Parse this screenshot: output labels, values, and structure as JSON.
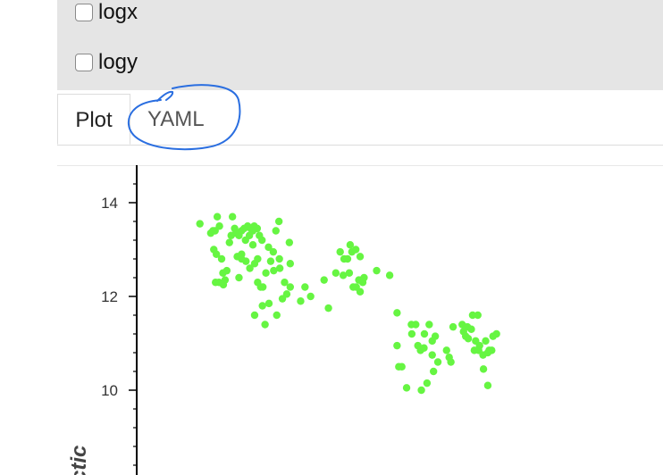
{
  "options": {
    "logx_label": "logx",
    "logy_label": "logy"
  },
  "tabs": [
    {
      "label": "Plot",
      "active": true
    },
    {
      "label": "YAML",
      "active": false
    }
  ],
  "annotation_color": "#2a6ee0",
  "chart_data": {
    "type": "scatter",
    "ylabel": "ctic",
    "yticks": [
      10,
      12,
      14
    ],
    "ylim": [
      8,
      14.8
    ],
    "point_color": "#66f542",
    "x_axis_visible": false,
    "x_domain": [
      0,
      100
    ],
    "points": [
      [
        2,
        13.55
      ],
      [
        4.5,
        13.35
      ],
      [
        5,
        13.4
      ],
      [
        5.5,
        13.4
      ],
      [
        6,
        13.7
      ],
      [
        6.5,
        13.5
      ],
      [
        5.2,
        13.0
      ],
      [
        5.8,
        12.9
      ],
      [
        7,
        12.8
      ],
      [
        6.4,
        12.3
      ],
      [
        5.6,
        12.3
      ],
      [
        7.3,
        12.5
      ],
      [
        8.2,
        12.55
      ],
      [
        7.8,
        12.35
      ],
      [
        7.4,
        12.25
      ],
      [
        8.8,
        13.15
      ],
      [
        9.5,
        13.7
      ],
      [
        10,
        13.45
      ],
      [
        10.3,
        13.35
      ],
      [
        11,
        13.3
      ],
      [
        11.6,
        13.4
      ],
      [
        12.2,
        13.45
      ],
      [
        13,
        13.5
      ],
      [
        13.7,
        13.45
      ],
      [
        14.5,
        13.5
      ],
      [
        14.2,
        13.4
      ],
      [
        15.2,
        13.45
      ],
      [
        15.7,
        13.3
      ],
      [
        9.2,
        13.3
      ],
      [
        10.6,
        12.85
      ],
      [
        11.6,
        12.9
      ],
      [
        12.5,
        13.2
      ],
      [
        13.4,
        13.3
      ],
      [
        14.2,
        13.1
      ],
      [
        15.3,
        12.8
      ],
      [
        16.3,
        13.2
      ],
      [
        17.8,
        13.05
      ],
      [
        18.9,
        12.95
      ],
      [
        19.5,
        13.4
      ],
      [
        20.2,
        13.6
      ],
      [
        22.6,
        13.15
      ],
      [
        11,
        12.4
      ],
      [
        11.6,
        12.8
      ],
      [
        12.6,
        12.75
      ],
      [
        13.5,
        12.6
      ],
      [
        14.6,
        12.7
      ],
      [
        15.3,
        12.3
      ],
      [
        16,
        12.2
      ],
      [
        16.5,
        12.2
      ],
      [
        17.2,
        12.5
      ],
      [
        18.3,
        12.75
      ],
      [
        19,
        12.55
      ],
      [
        20.4,
        12.6
      ],
      [
        20.3,
        12.8
      ],
      [
        21.5,
        12.3
      ],
      [
        22.8,
        12.2
      ],
      [
        22.8,
        12.7
      ],
      [
        14.6,
        11.6
      ],
      [
        16.4,
        11.8
      ],
      [
        17,
        11.4
      ],
      [
        17.9,
        11.85
      ],
      [
        19.7,
        11.6
      ],
      [
        21,
        11.95
      ],
      [
        22,
        12.05
      ],
      [
        25.2,
        11.9
      ],
      [
        26.2,
        12.2
      ],
      [
        27.5,
        12.0
      ],
      [
        30.6,
        12.35
      ],
      [
        31.6,
        11.75
      ],
      [
        33.3,
        12.5
      ],
      [
        34.3,
        12.95
      ],
      [
        35.2,
        12.8
      ],
      [
        36,
        12.8
      ],
      [
        36.6,
        13.1
      ],
      [
        37,
        12.95
      ],
      [
        37.9,
        13.0
      ],
      [
        38.9,
        12.85
      ],
      [
        36.4,
        12.5
      ],
      [
        35,
        12.45
      ],
      [
        37.3,
        12.2
      ],
      [
        38,
        12.2
      ],
      [
        38.6,
        12.35
      ],
      [
        39.5,
        12.3
      ],
      [
        38.9,
        12.1
      ],
      [
        39.8,
        12.4
      ],
      [
        42.7,
        12.55
      ],
      [
        45.7,
        12.45
      ],
      [
        47.4,
        11.65
      ],
      [
        47.4,
        10.95
      ],
      [
        47.8,
        10.5
      ],
      [
        48.5,
        10.5
      ],
      [
        49.6,
        10.05
      ],
      [
        50.7,
        11.4
      ],
      [
        51.7,
        11.4
      ],
      [
        50.8,
        11.2
      ],
      [
        52.2,
        10.95
      ],
      [
        52.8,
        10.85
      ],
      [
        53.6,
        10.9
      ],
      [
        53.7,
        11.2
      ],
      [
        54.8,
        11.4
      ],
      [
        55.5,
        11.05
      ],
      [
        56.2,
        11.15
      ],
      [
        55.5,
        10.75
      ],
      [
        56.8,
        10.6
      ],
      [
        55.8,
        10.4
      ],
      [
        53,
        10.0
      ],
      [
        54.3,
        10.15
      ],
      [
        58.8,
        10.85
      ],
      [
        59.4,
        10.7
      ],
      [
        59.8,
        10.6
      ],
      [
        60.3,
        11.35
      ],
      [
        62.4,
        11.4
      ],
      [
        62.7,
        11.25
      ],
      [
        63.6,
        11.35
      ],
      [
        63.2,
        11.15
      ],
      [
        64.5,
        11.3
      ],
      [
        63.8,
        11.1
      ],
      [
        64.8,
        11.6
      ],
      [
        66,
        11.6
      ],
      [
        65.2,
        10.85
      ],
      [
        66.2,
        10.85
      ],
      [
        67.2,
        10.75
      ],
      [
        67.8,
        11.05
      ],
      [
        68.6,
        10.85
      ],
      [
        68.3,
        10.8
      ],
      [
        69.2,
        10.85
      ],
      [
        69.5,
        11.15
      ],
      [
        70.3,
        11.2
      ],
      [
        67.3,
        10.45
      ],
      [
        68.3,
        10.1
      ],
      [
        65.5,
        11.05
      ],
      [
        66.4,
        10.95
      ]
    ]
  }
}
